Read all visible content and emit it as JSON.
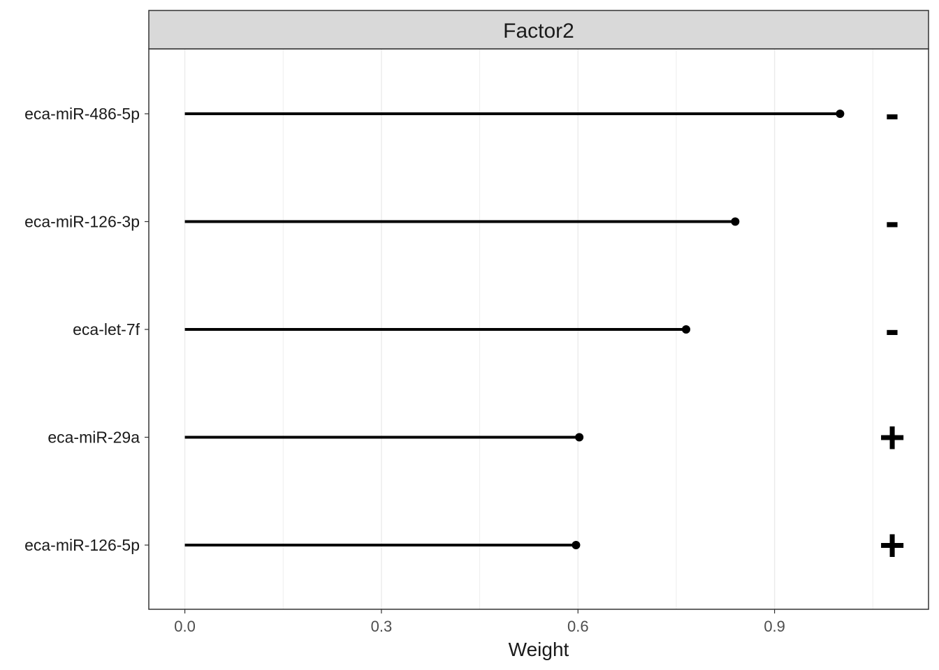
{
  "chart_data": {
    "type": "lollipop",
    "facet_title": "Factor2",
    "xlabel": "Weight",
    "ylabel": "",
    "xlim": [
      -0.055,
      1.135
    ],
    "x_ticks": [
      "0.0",
      "0.3",
      "0.6",
      "0.9"
    ],
    "x_tick_values": [
      0.0,
      0.3,
      0.6,
      0.9
    ],
    "categories": [
      "eca-miR-486-5p",
      "eca-miR-126-3p",
      "eca-let-7f",
      "eca-miR-29a",
      "eca-miR-126-5p"
    ],
    "values": [
      1.0,
      0.84,
      0.765,
      0.602,
      0.597
    ],
    "signs": [
      "-",
      "-",
      "-",
      "+",
      "+"
    ],
    "grid": true,
    "colors": {
      "stem": "#000000",
      "point": "#000000",
      "strip_fill": "#d9d9d9",
      "grid": "#ebebeb",
      "panel_border": "#333333"
    }
  }
}
